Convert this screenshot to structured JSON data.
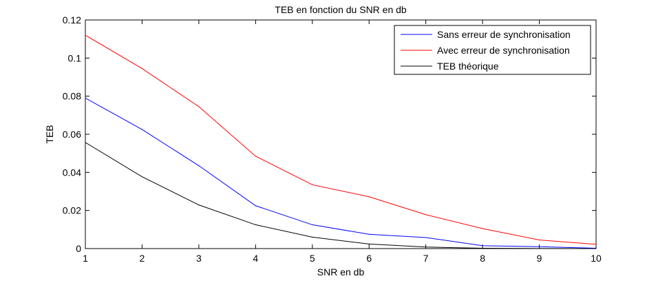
{
  "chart_data": {
    "type": "line",
    "title": "TEB en fonction du SNR en db",
    "xlabel": "SNR en db",
    "ylabel": "TEB",
    "xlim": [
      1,
      10
    ],
    "ylim": [
      0,
      0.12
    ],
    "x": [
      1,
      2,
      3,
      4,
      5,
      6,
      7,
      8,
      9,
      10
    ],
    "x_ticks": [
      "1",
      "2",
      "3",
      "4",
      "5",
      "6",
      "7",
      "8",
      "9",
      "10"
    ],
    "y_ticks": [
      {
        "value": 0,
        "label": "0"
      },
      {
        "value": 0.02,
        "label": "0.02"
      },
      {
        "value": 0.04,
        "label": "0.04"
      },
      {
        "value": 0.06,
        "label": "0.06"
      },
      {
        "value": 0.08,
        "label": "0.08"
      },
      {
        "value": 0.1,
        "label": "0.1"
      },
      {
        "value": 0.12,
        "label": "0.12"
      }
    ],
    "grid": false,
    "legend_position": "top-right",
    "series": [
      {
        "name": "Sans erreur de synchronisation",
        "color": "#0000ff",
        "values": [
          0.079,
          0.0625,
          0.0435,
          0.0225,
          0.0125,
          0.0075,
          0.0058,
          0.0015,
          0.001,
          0.0002
        ]
      },
      {
        "name": "Avec erreur de synchronisation",
        "color": "#ff0000",
        "values": [
          0.112,
          0.0945,
          0.0745,
          0.0485,
          0.0335,
          0.0272,
          0.0178,
          0.0105,
          0.0045,
          0.0022
        ]
      },
      {
        "name": "TEB théorique",
        "color": "#000000",
        "values": [
          0.0557,
          0.0377,
          0.0229,
          0.0125,
          0.006,
          0.0024,
          0.0008,
          0.0002,
          3e-05,
          4e-06
        ]
      }
    ]
  }
}
